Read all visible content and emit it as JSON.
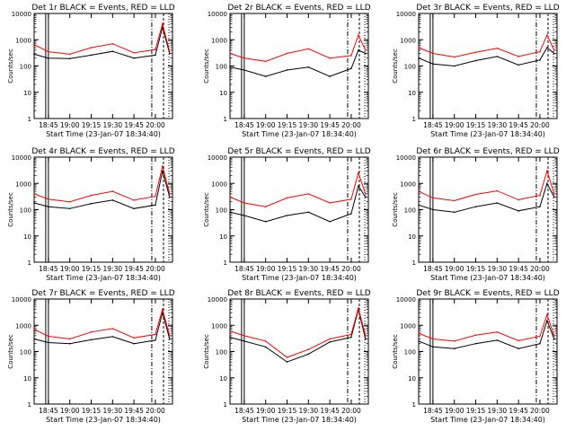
{
  "figure": {
    "x_tick_labels": [
      "18:45",
      "19:00",
      "19:15",
      "19:30",
      "19:45",
      "20:00"
    ],
    "y_tick_labels": [
      "1",
      "10",
      "100",
      "1000",
      "10000"
    ],
    "x_label": "Start Time (23-Jan-07 18:34:40)",
    "y_label": "Counts/sec",
    "colors": {
      "events": "#000000",
      "lld": "#ff0000"
    }
  },
  "chart_data": [
    {
      "type": "line",
      "title": "Det 1r BLACK = Events, RED = LLD",
      "xlabel": "Start Time (23-Jan-07 18:34:40)",
      "ylabel": "Counts/sec",
      "x": [
        "18:35",
        "18:45",
        "19:00",
        "19:15",
        "19:30",
        "19:45",
        "20:00",
        "20:05",
        "20:10"
      ],
      "ylim": [
        1,
        10000
      ],
      "yscale": "log",
      "series": [
        {
          "name": "Events",
          "color": "#000000",
          "values": [
            280,
            200,
            190,
            260,
            360,
            200,
            260,
            3000,
            300
          ]
        },
        {
          "name": "LLD",
          "color": "#ff0000",
          "values": [
            650,
            350,
            280,
            500,
            700,
            320,
            420,
            4000,
            350
          ]
        }
      ]
    },
    {
      "type": "line",
      "title": "Det 2r BLACK = Events, RED = LLD",
      "xlabel": "Start Time (23-Jan-07 18:34:40)",
      "ylabel": "Counts/sec",
      "x": [
        "18:35",
        "18:45",
        "19:00",
        "19:15",
        "19:30",
        "19:45",
        "20:00",
        "20:05",
        "20:10"
      ],
      "ylim": [
        1,
        10000
      ],
      "yscale": "log",
      "series": [
        {
          "name": "Events",
          "color": "#000000",
          "values": [
            90,
            70,
            40,
            70,
            90,
            40,
            80,
            400,
            300
          ]
        },
        {
          "name": "LLD",
          "color": "#ff0000",
          "values": [
            300,
            200,
            150,
            300,
            450,
            200,
            250,
            1500,
            400
          ]
        }
      ]
    },
    {
      "type": "line",
      "title": "Det 3r BLACK = Events, RED = LLD",
      "xlabel": "Start Time (23-Jan-07 18:34:40)",
      "ylabel": "Counts/sec",
      "x": [
        "18:35",
        "18:45",
        "19:00",
        "19:15",
        "19:30",
        "19:45",
        "20:00",
        "20:05",
        "20:10"
      ],
      "ylim": [
        1,
        10000
      ],
      "yscale": "log",
      "series": [
        {
          "name": "Events",
          "color": "#000000",
          "values": [
            200,
            120,
            100,
            160,
            230,
            110,
            170,
            500,
            300
          ]
        },
        {
          "name": "LLD",
          "color": "#ff0000",
          "values": [
            500,
            300,
            220,
            330,
            470,
            230,
            350,
            1500,
            400
          ]
        }
      ]
    },
    {
      "type": "line",
      "title": "Det 4r BLACK = Events, RED = LLD",
      "xlabel": "Start Time (23-Jan-07 18:34:40)",
      "ylabel": "Counts/sec",
      "x": [
        "18:35",
        "18:45",
        "19:00",
        "19:15",
        "19:30",
        "19:45",
        "20:00",
        "20:05",
        "20:10"
      ],
      "ylim": [
        1,
        10000
      ],
      "yscale": "log",
      "series": [
        {
          "name": "Events",
          "color": "#000000",
          "values": [
            180,
            130,
            110,
            170,
            230,
            110,
            150,
            3000,
            300
          ]
        },
        {
          "name": "LLD",
          "color": "#ff0000",
          "values": [
            400,
            250,
            200,
            350,
            500,
            230,
            320,
            4500,
            400
          ]
        }
      ]
    },
    {
      "type": "line",
      "title": "Det 5r BLACK = Events, RED = LLD",
      "xlabel": "Start Time (23-Jan-07 18:34:40)",
      "ylabel": "Counts/sec",
      "x": [
        "18:35",
        "18:45",
        "19:00",
        "19:15",
        "19:30",
        "19:45",
        "20:00",
        "20:05",
        "20:10"
      ],
      "ylim": [
        1,
        10000
      ],
      "yscale": "log",
      "series": [
        {
          "name": "Events",
          "color": "#000000",
          "values": [
            80,
            60,
            35,
            60,
            80,
            35,
            70,
            800,
            300
          ]
        },
        {
          "name": "LLD",
          "color": "#ff0000",
          "values": [
            300,
            180,
            130,
            280,
            400,
            180,
            250,
            2500,
            400
          ]
        }
      ]
    },
    {
      "type": "line",
      "title": "Det 6r BLACK = Events, RED = LLD",
      "xlabel": "Start Time (23-Jan-07 18:34:40)",
      "ylabel": "Counts/sec",
      "x": [
        "18:35",
        "18:45",
        "19:00",
        "19:15",
        "19:30",
        "19:45",
        "20:00",
        "20:05",
        "20:10"
      ],
      "ylim": [
        1,
        10000
      ],
      "yscale": "log",
      "series": [
        {
          "name": "Events",
          "color": "#000000",
          "values": [
            150,
            100,
            80,
            130,
            180,
            90,
            130,
            1000,
            300
          ]
        },
        {
          "name": "LLD",
          "color": "#ff0000",
          "values": [
            500,
            280,
            220,
            380,
            520,
            240,
            350,
            3000,
            400
          ]
        }
      ]
    },
    {
      "type": "line",
      "title": "Det 7r BLACK = Events, RED = LLD",
      "xlabel": "Start Time (23-Jan-07 18:34:40)",
      "ylabel": "Counts/sec",
      "x": [
        "18:35",
        "18:45",
        "19:00",
        "19:15",
        "19:30",
        "19:45",
        "20:00",
        "20:05",
        "20:10"
      ],
      "ylim": [
        1,
        10000
      ],
      "yscale": "log",
      "series": [
        {
          "name": "Events",
          "color": "#000000",
          "values": [
            300,
            220,
            200,
            280,
            370,
            200,
            270,
            3000,
            300
          ]
        },
        {
          "name": "LLD",
          "color": "#ff0000",
          "values": [
            700,
            380,
            300,
            550,
            750,
            330,
            450,
            4000,
            400
          ]
        }
      ]
    },
    {
      "type": "line",
      "title": "Det 8r BLACK = Events, RED = LLD",
      "xlabel": "Start Time (23-Jan-07 18:34:40)",
      "ylabel": "Counts/sec",
      "x": [
        "18:35",
        "18:45",
        "19:00",
        "19:15",
        "19:30",
        "19:45",
        "20:00",
        "20:05",
        "20:10"
      ],
      "ylim": [
        1,
        10000
      ],
      "yscale": "log",
      "series": [
        {
          "name": "Events",
          "color": "#000000",
          "values": [
            350,
            250,
            150,
            40,
            80,
            230,
            350,
            4000,
            300
          ]
        },
        {
          "name": "LLD",
          "color": "#ff0000",
          "values": [
            600,
            400,
            250,
            60,
            120,
            300,
            450,
            4500,
            400
          ]
        }
      ]
    },
    {
      "type": "line",
      "title": "Det 9r BLACK = Events, RED = LLD",
      "xlabel": "Start Time (23-Jan-07 18:34:40)",
      "ylabel": "Counts/sec",
      "x": [
        "18:35",
        "18:45",
        "19:00",
        "19:15",
        "19:30",
        "19:45",
        "20:00",
        "20:05",
        "20:10"
      ],
      "ylim": [
        1,
        10000
      ],
      "yscale": "log",
      "series": [
        {
          "name": "Events",
          "color": "#000000",
          "values": [
            250,
            150,
            130,
            200,
            270,
            130,
            200,
            1500,
            300
          ]
        },
        {
          "name": "LLD",
          "color": "#ff0000",
          "values": [
            500,
            300,
            250,
            420,
            550,
            260,
            380,
            2500,
            400
          ]
        }
      ]
    }
  ]
}
